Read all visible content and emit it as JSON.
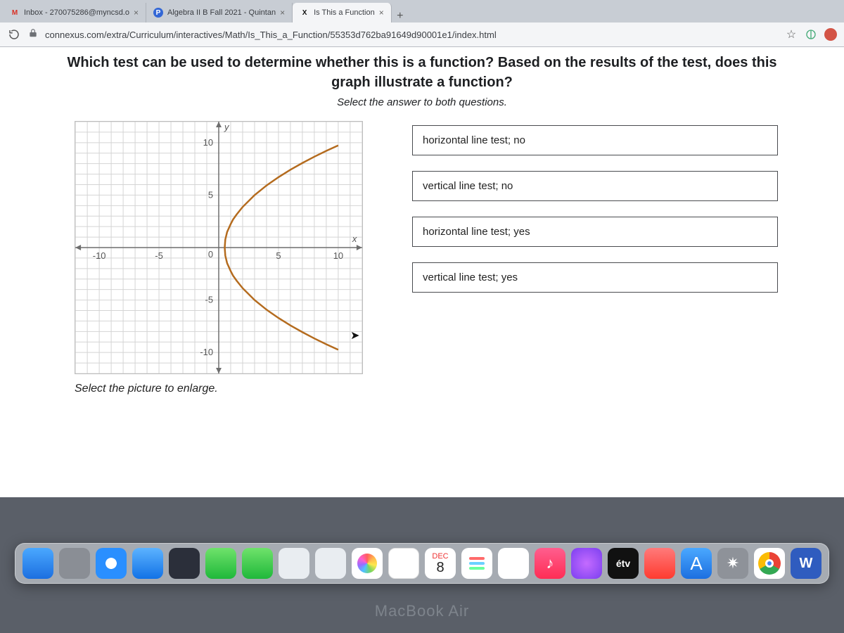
{
  "tabs": [
    {
      "label": "Inbox - 270075286@myncsd.o",
      "icon": "M"
    },
    {
      "label": "Algebra II B Fall 2021 - Quintan",
      "icon": "P"
    },
    {
      "label": "Is This a Function",
      "icon": "X",
      "active": true
    }
  ],
  "newtab": "+",
  "url": "connexus.com/extra/Curriculum/interactives/Math/Is_This_a_Function/55353d762ba91649d90001e1/index.html",
  "question_line1": "Which test can be used to determine whether this is a function? Based on the results of the test, does this",
  "question_line2": "graph illustrate a function?",
  "subtitle": "Select the answer to both questions.",
  "enlarge": "Select the picture to enlarge.",
  "answers": [
    "horizontal line test; no",
    "vertical line test; no",
    "horizontal line test; yes",
    "vertical line test; yes"
  ],
  "graph": {
    "xlim": [
      -12,
      12
    ],
    "ylim": [
      -12,
      12
    ],
    "xticks": [
      {
        "v": -10,
        "l": "-10"
      },
      {
        "v": -5,
        "l": "-5"
      },
      {
        "v": 5,
        "l": "5"
      },
      {
        "v": 10,
        "l": "10"
      }
    ],
    "yticks": [
      {
        "v": 10,
        "l": "10"
      },
      {
        "v": 5,
        "l": "5"
      },
      {
        "v": -5,
        "l": "-5"
      },
      {
        "v": -10,
        "l": "-10"
      }
    ],
    "origin_label": "0",
    "xaxis_label": "x",
    "yaxis_label": "y",
    "curve_color": "#b46b1e",
    "grid_color": "#d4d4d4",
    "axis_color": "#6e6e6e",
    "curve_points": [
      [
        10,
        9.74
      ],
      [
        9,
        9.22
      ],
      [
        8,
        8.66
      ],
      [
        7,
        8.06
      ],
      [
        6,
        7.42
      ],
      [
        5,
        6.71
      ],
      [
        4,
        5.92
      ],
      [
        3,
        5.0
      ],
      [
        2,
        3.87
      ],
      [
        1.5,
        3.16
      ],
      [
        1.2,
        2.68
      ],
      [
        1,
        2.24
      ],
      [
        0.7,
        1.48
      ],
      [
        0.55,
        0.77
      ],
      [
        0.5,
        0
      ],
      [
        0.55,
        -0.77
      ],
      [
        0.7,
        -1.48
      ],
      [
        1,
        -2.24
      ],
      [
        1.2,
        -2.68
      ],
      [
        1.5,
        -3.16
      ],
      [
        2,
        -3.87
      ],
      [
        3,
        -5.0
      ],
      [
        4,
        -5.92
      ],
      [
        5,
        -6.71
      ],
      [
        6,
        -7.42
      ],
      [
        7,
        -8.06
      ],
      [
        8,
        -8.66
      ],
      [
        9,
        -9.22
      ],
      [
        10,
        -9.74
      ]
    ]
  },
  "calendar": {
    "month": "DEC",
    "day": "8"
  },
  "tv_label": "étv",
  "macbook": "MacBook Air"
}
